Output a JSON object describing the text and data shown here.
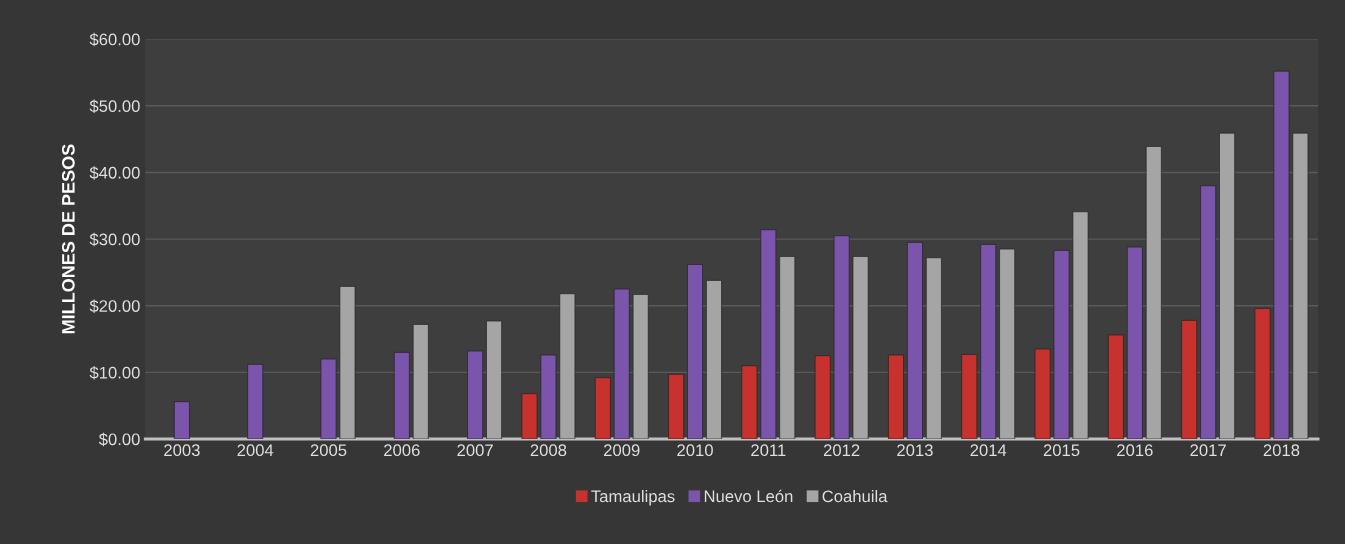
{
  "chart_data": {
    "type": "bar",
    "ylabel": "MILLONES DE PESOS",
    "categories": [
      "2003",
      "2004",
      "2005",
      "2006",
      "2007",
      "2008",
      "2009",
      "2010",
      "2011",
      "2012",
      "2013",
      "2014",
      "2015",
      "2016",
      "2017",
      "2018"
    ],
    "series": [
      {
        "name": "Tamaulipas",
        "color": "#c8322e",
        "values": [
          null,
          null,
          null,
          null,
          null,
          6.8,
          9.2,
          9.7,
          11.0,
          12.5,
          12.6,
          12.7,
          13.5,
          15.6,
          17.8,
          19.6
        ]
      },
      {
        "name": "Nuevo León",
        "color": "#7b54ab",
        "values": [
          5.6,
          11.2,
          12.0,
          13.0,
          13.2,
          12.6,
          22.5,
          26.2,
          31.4,
          30.5,
          29.5,
          29.2,
          28.3,
          28.8,
          38.0,
          55.2
        ]
      },
      {
        "name": "Coahuila",
        "color": "#a5a5a5",
        "values": [
          null,
          null,
          22.9,
          17.2,
          17.7,
          21.8,
          21.7,
          23.8,
          27.4,
          27.4,
          27.2,
          28.5,
          34.1,
          43.9,
          45.9,
          45.9
        ]
      }
    ],
    "ylim": [
      0,
      60
    ],
    "yticks": [
      {
        "value": 0,
        "label": "$0.00"
      },
      {
        "value": 10,
        "label": "$10.00"
      },
      {
        "value": 20,
        "label": "$20.00"
      },
      {
        "value": 30,
        "label": "$30.00"
      },
      {
        "value": 40,
        "label": "$40.00"
      },
      {
        "value": 50,
        "label": "$50.00"
      },
      {
        "value": 60,
        "label": "$60.00"
      }
    ],
    "grid": "y",
    "legend": "bottom"
  }
}
